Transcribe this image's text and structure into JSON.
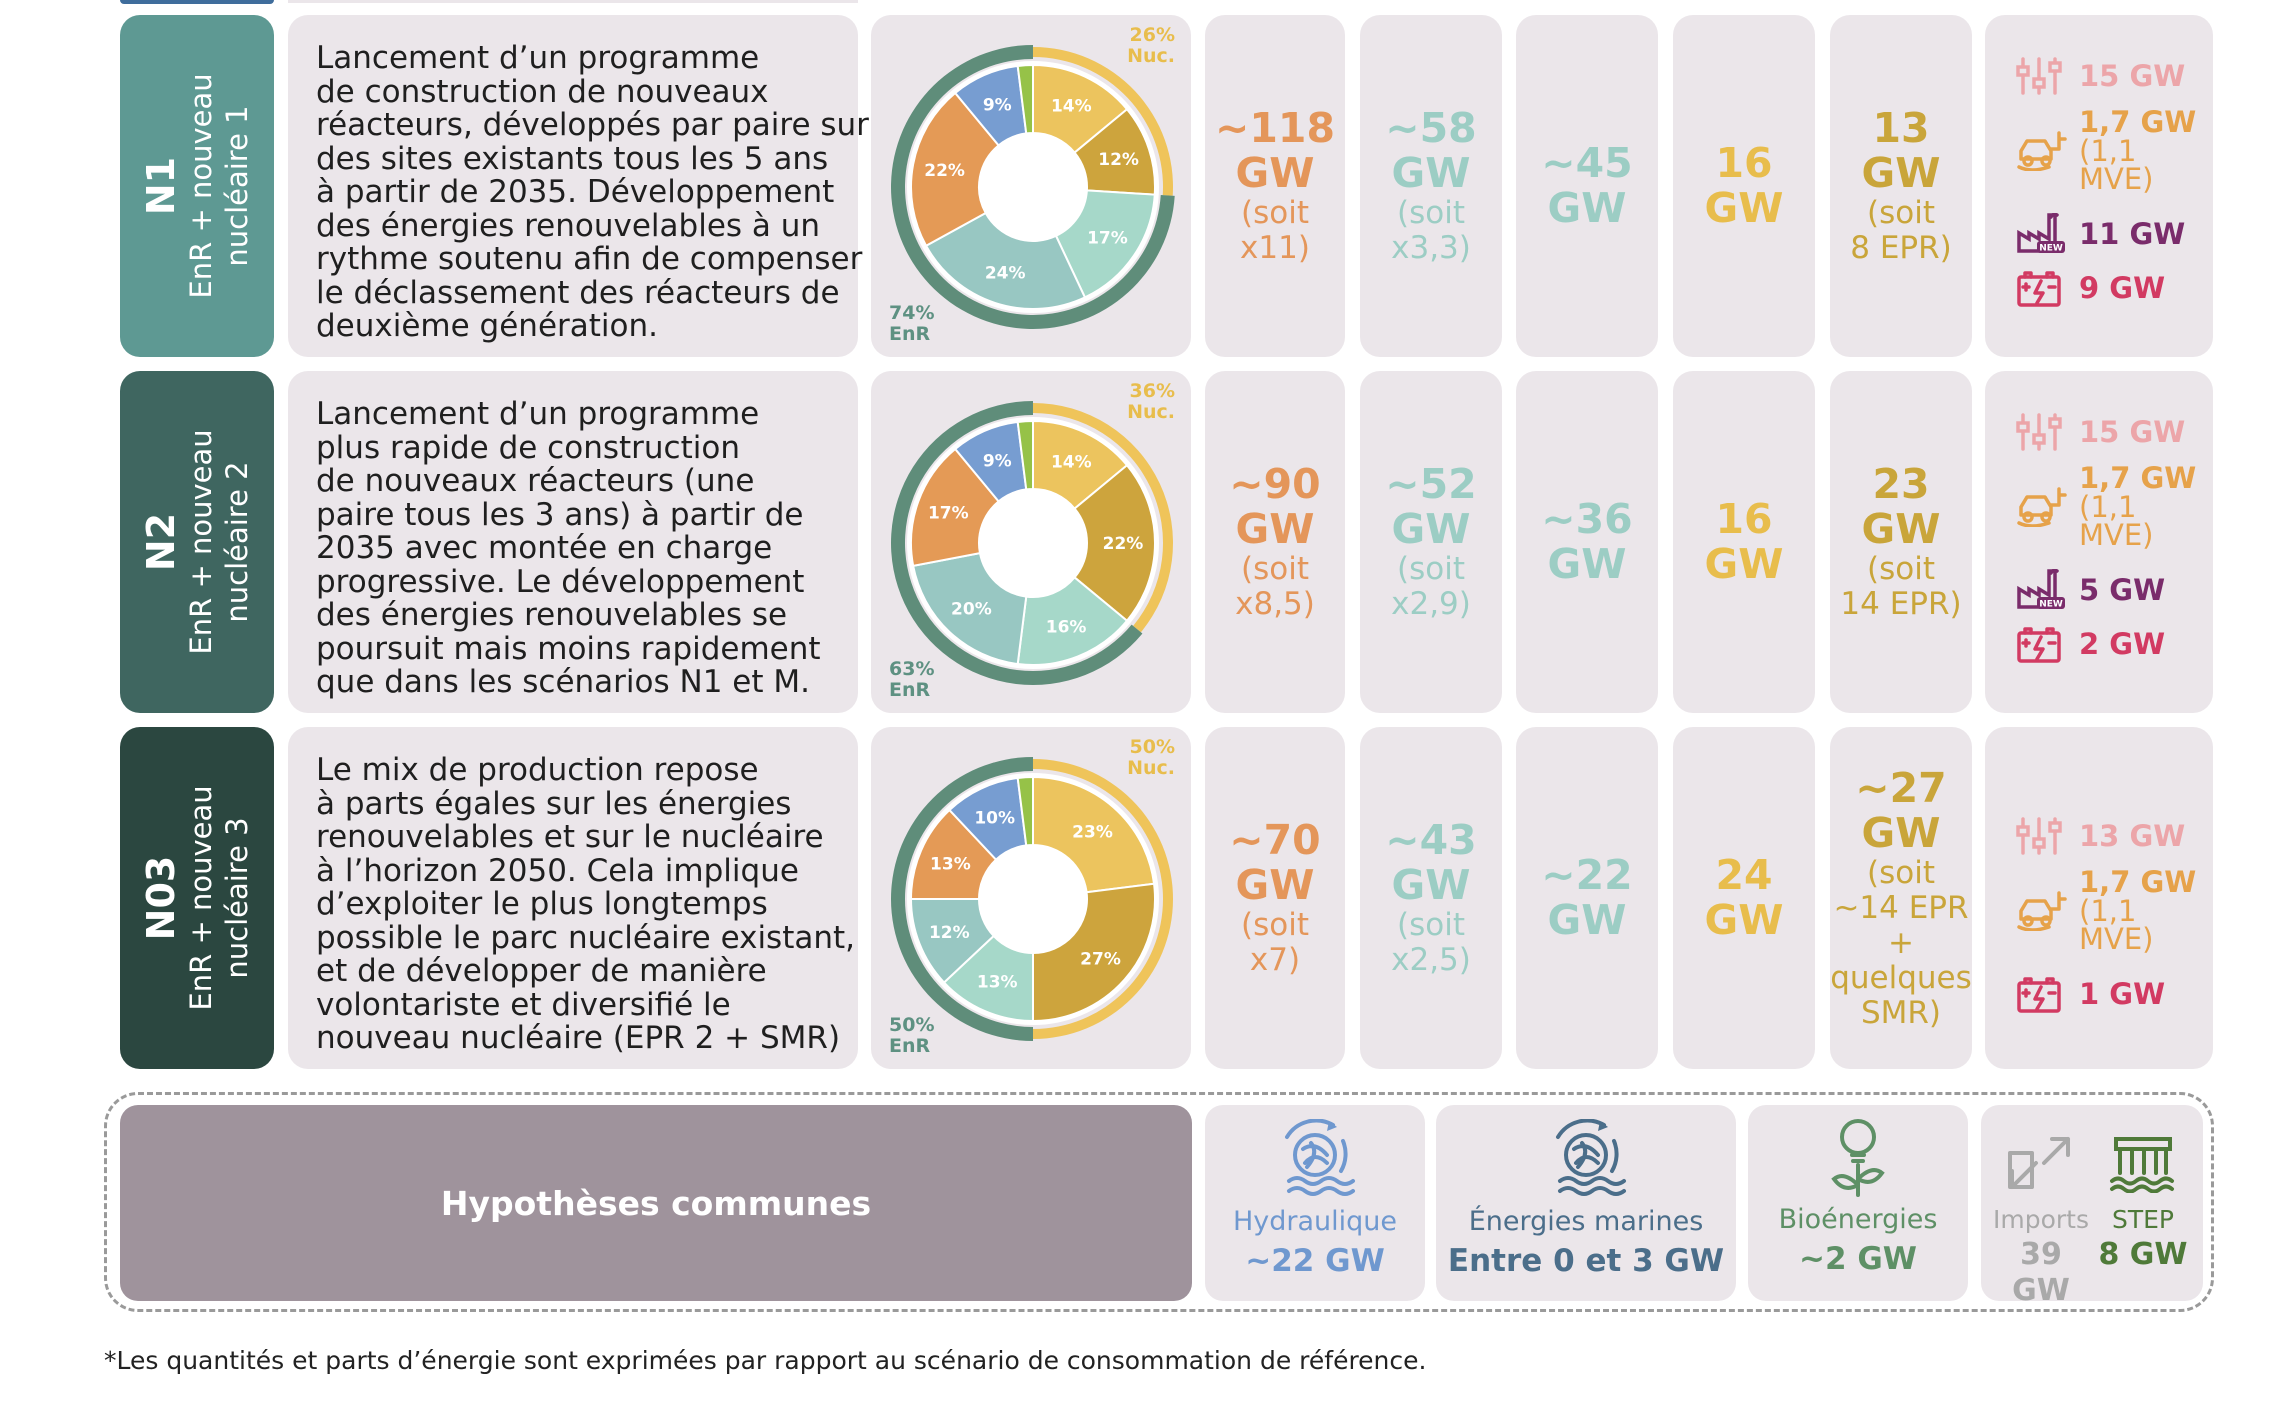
{
  "scenarios": [
    {
      "code": "N1",
      "subtitle_line1": "EnR + nouveau",
      "subtitle_line2": "nucléaire 1",
      "color": "#5e9993",
      "description": [
        "Lancement d’un programme",
        "de construction de nouveaux",
        "réacteurs, développés par paire sur",
        "des sites existants tous les 5 ans",
        "à partir de 2035. Développement",
        "des énergies renouvelables à un",
        "rythme soutenu afin de compenser",
        "le déclassement des réacteurs de",
        "deuxième génération."
      ],
      "nuc_share": "26%",
      "nuc_label": "Nuc.",
      "enr_share": "74%",
      "enr_label": "EnR",
      "solar": {
        "value": "~118",
        "unit": "GW",
        "ratio": "(soit",
        "ratio2": "x11)"
      },
      "onshore": {
        "value": "~58",
        "unit": "GW",
        "ratio": "(soit",
        "ratio2": "x3,3)"
      },
      "offshore": {
        "value": "~45",
        "unit": "GW"
      },
      "nuclear_existing": {
        "value": "16",
        "unit": "GW"
      },
      "nuclear_new": {
        "value": "13",
        "unit": "GW",
        "ratio": "(soit",
        "ratio2": "8 EPR)"
      },
      "flex": {
        "dsm": "15 GW",
        "v2g": "1,7 GW",
        "v2g_sub": "(1,1 MVE)",
        "thermal": "11 GW",
        "battery": "9 GW"
      }
    },
    {
      "code": "N2",
      "subtitle_line1": "EnR + nouveau",
      "subtitle_line2": "nucléaire 2",
      "color": "#3f6660",
      "description": [
        "Lancement d’un programme",
        "plus rapide de construction",
        "de nouveaux réacteurs (une",
        "paire tous les 3 ans) à partir de",
        "2035 avec montée en charge",
        "progressive. Le développement",
        "des énergies renouvelables se",
        "poursuit mais moins rapidement",
        "que dans les scénarios N1 et M."
      ],
      "nuc_share": "36%",
      "nuc_label": "Nuc.",
      "enr_share": "63%",
      "enr_label": "EnR",
      "solar": {
        "value": "~90",
        "unit": "GW",
        "ratio": "(soit",
        "ratio2": "x8,5)"
      },
      "onshore": {
        "value": "~52",
        "unit": "GW",
        "ratio": "(soit",
        "ratio2": "x2,9)"
      },
      "offshore": {
        "value": "~36",
        "unit": "GW"
      },
      "nuclear_existing": {
        "value": "16",
        "unit": "GW"
      },
      "nuclear_new": {
        "value": "23",
        "unit": "GW",
        "ratio": "(soit",
        "ratio2": "14 EPR)"
      },
      "flex": {
        "dsm": "15 GW",
        "v2g": "1,7 GW",
        "v2g_sub": "(1,1 MVE)",
        "thermal": "5 GW",
        "battery": "2 GW"
      }
    },
    {
      "code": "N03",
      "subtitle_line1": "EnR + nouveau",
      "subtitle_line2": "nucléaire 3",
      "color": "#2b4740",
      "description": [
        "Le mix de production repose",
        "à parts égales sur les énergies",
        "renouvelables et sur le nucléaire",
        "à l’horizon 2050. Cela implique",
        "d’exploiter le plus longtemps",
        "possible le parc nucléaire existant,",
        "et de développer de manière",
        "volontariste et diversifié le",
        "nouveau nucléaire (EPR 2 + SMR)"
      ],
      "nuc_share": "50%",
      "nuc_label": "Nuc.",
      "enr_share": "50%",
      "enr_label": "EnR",
      "solar": {
        "value": "~70",
        "unit": "GW",
        "ratio": "(soit",
        "ratio2": "x7)"
      },
      "onshore": {
        "value": "~43",
        "unit": "GW",
        "ratio": "(soit",
        "ratio2": "x2,5)"
      },
      "offshore": {
        "value": "~22",
        "unit": "GW"
      },
      "nuclear_existing": {
        "value": "24",
        "unit": "GW"
      },
      "nuclear_new": {
        "value": "~27",
        "unit": "GW",
        "ratio": "(soit",
        "ratio2": "~14 EPR",
        "ratio3": "+",
        "ratio4": "quelques",
        "ratio5": "SMR)"
      },
      "flex": {
        "dsm": "13 GW",
        "v2g": "1,7 GW",
        "v2g_sub": "(1,1 MVE)",
        "battery": "1 GW"
      }
    }
  ],
  "donuts": [
    {
      "segments": [
        {
          "label": "14%",
          "value": 14,
          "color": "#ecc45e"
        },
        {
          "label": "12%",
          "value": 12,
          "color": "#cda43d"
        },
        {
          "label": "17%",
          "value": 17,
          "color": "#a6d8c9"
        },
        {
          "label": "24%",
          "value": 24,
          "color": "#98c7c2"
        },
        {
          "label": "22%",
          "value": 22,
          "color": "#e49a56"
        },
        {
          "label": "9%",
          "value": 9,
          "color": "#779dd1"
        },
        {
          "label": "",
          "value": 2,
          "color": "#96c248"
        }
      ],
      "nuc_fraction": 0.26,
      "enr_fraction": 0.74
    },
    {
      "segments": [
        {
          "label": "14%",
          "value": 14,
          "color": "#ecc45e"
        },
        {
          "label": "22%",
          "value": 22,
          "color": "#cda43d"
        },
        {
          "label": "16%",
          "value": 16,
          "color": "#a6d8c9"
        },
        {
          "label": "20%",
          "value": 20,
          "color": "#98c7c2"
        },
        {
          "label": "17%",
          "value": 17,
          "color": "#e49a56"
        },
        {
          "label": "9%",
          "value": 9,
          "color": "#779dd1"
        },
        {
          "label": "",
          "value": 2,
          "color": "#96c248"
        }
      ],
      "nuc_fraction": 0.36,
      "enr_fraction": 0.63
    },
    {
      "segments": [
        {
          "label": "23%",
          "value": 23,
          "color": "#ecc45e"
        },
        {
          "label": "27%",
          "value": 27,
          "color": "#cda43d"
        },
        {
          "label": "13%",
          "value": 13,
          "color": "#a6d8c9"
        },
        {
          "label": "12%",
          "value": 12,
          "color": "#98c7c2"
        },
        {
          "label": "13%",
          "value": 13,
          "color": "#e49a56"
        },
        {
          "label": "10%",
          "value": 10,
          "color": "#779dd1"
        },
        {
          "label": "",
          "value": 2,
          "color": "#96c248"
        }
      ],
      "nuc_fraction": 0.5,
      "enr_fraction": 0.5
    }
  ],
  "common": {
    "title": "Hypothèses communes",
    "hydro": {
      "name": "Hydraulique",
      "amount": "~22 GW",
      "color": "#6f98cf"
    },
    "marine": {
      "name": "Énergies marines",
      "amount": "Entre 0 et 3 GW",
      "color": "#4b6e8a"
    },
    "bio": {
      "name": "Bioénergies",
      "amount": "~2 GW",
      "color": "#5e9066"
    },
    "imports": {
      "name": "Imports",
      "amount": "39 GW",
      "color": "#a9a9a9"
    },
    "step": {
      "name": "STEP",
      "amount": "8 GW",
      "color": "#4f7a39"
    }
  },
  "colors": {
    "dsm": "#eca5a9",
    "v2g": "#e6a24a",
    "thermal": "#7a2c6b",
    "battery": "#d23a62"
  },
  "footnote": "*Les quantités et parts d’énergie sont exprimées par rapport au scénario de consommation de référence."
}
